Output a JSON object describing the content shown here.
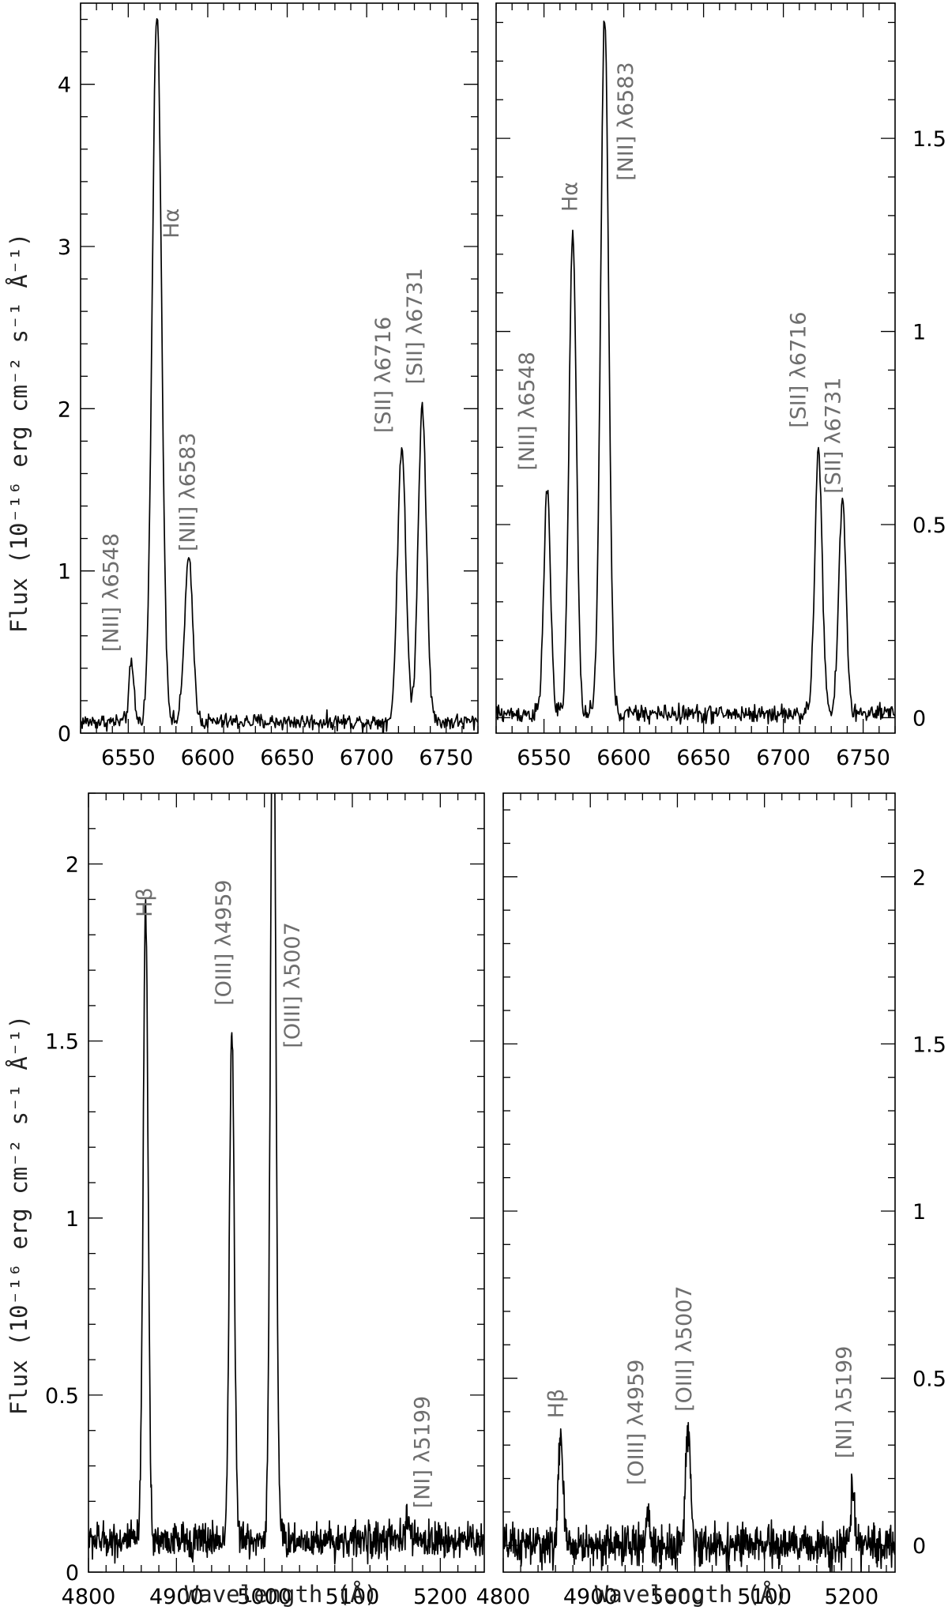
{
  "figure": {
    "xlabel": "Wavelength (Å)",
    "ylabel": "Flux (10⁻¹⁶ erg cm⁻² s⁻¹ Å⁻¹)"
  },
  "chart_data": [
    {
      "type": "line",
      "panel": "top-left",
      "xlabel": "",
      "ylabel": "Flux (10⁻¹⁶ erg cm⁻² s⁻¹ Å⁻¹)",
      "xlim": [
        6520,
        6770
      ],
      "ylim": [
        0,
        4.5
      ],
      "xticks": [
        6550,
        6600,
        6650,
        6700,
        6750
      ],
      "yticks": [
        0,
        1,
        2,
        3,
        4
      ],
      "ytick_side": "left",
      "continuum": 0.07,
      "noise": 0.025,
      "lines": [
        {
          "center": 6552,
          "peak": 0.35,
          "sigma": 1.6
        },
        {
          "center": 6568,
          "peak": 4.4,
          "sigma": 2.9
        },
        {
          "center": 6588,
          "peak": 1.0,
          "sigma": 2.6
        },
        {
          "center": 6722,
          "peak": 1.7,
          "sigma": 2.6
        },
        {
          "center": 6735,
          "peak": 1.95,
          "sigma": 2.6
        }
      ],
      "annotations": [
        {
          "text": "[NII] λ6548",
          "x": 6540,
          "y": 0.5
        },
        {
          "text": "Hα",
          "x": 6578,
          "y": 3.05
        },
        {
          "text": "[NII] λ6583",
          "x": 6588,
          "y": 1.12
        },
        {
          "text": "[SII] λ6716",
          "x": 6711,
          "y": 1.85
        },
        {
          "text": "[SII] λ6731",
          "x": 6731,
          "y": 2.15
        }
      ]
    },
    {
      "type": "line",
      "panel": "top-right",
      "xlabel": "",
      "ylabel": "",
      "xlim": [
        6520,
        6770
      ],
      "ylim": [
        -0.04,
        1.85
      ],
      "xticks": [
        6550,
        6600,
        6650,
        6700,
        6750
      ],
      "yticks": [
        0,
        0.5,
        1,
        1.5
      ],
      "ytick_side": "right",
      "continuum": 0.01,
      "noise": 0.012,
      "lines": [
        {
          "center": 6552,
          "peak": 0.58,
          "sigma": 2.1
        },
        {
          "center": 6568,
          "peak": 1.24,
          "sigma": 2.3
        },
        {
          "center": 6588,
          "peak": 1.81,
          "sigma": 2.5
        },
        {
          "center": 6722,
          "peak": 0.68,
          "sigma": 2.3
        },
        {
          "center": 6737,
          "peak": 0.55,
          "sigma": 2.3
        }
      ],
      "annotations": [
        {
          "text": "[NII] λ6548",
          "x": 6540,
          "y": 0.64
        },
        {
          "text": "Hα",
          "x": 6567,
          "y": 1.31
        },
        {
          "text": "[NII] λ6583",
          "x": 6602,
          "y": 1.39
        },
        {
          "text": "[SII] λ6716",
          "x": 6710,
          "y": 0.75
        },
        {
          "text": "[SII] λ6731",
          "x": 6732,
          "y": 0.58
        }
      ]
    },
    {
      "type": "line",
      "panel": "bottom-left",
      "xlabel": "Wavelength (Å)",
      "ylabel": "Flux (10⁻¹⁶ erg cm⁻² s⁻¹ Å⁻¹)",
      "xlim": [
        4800,
        5250
      ],
      "ylim": [
        0,
        2.2
      ],
      "xticks": [
        4800,
        4900,
        5000,
        5100,
        5200
      ],
      "yticks": [
        0,
        0.5,
        1,
        1.5,
        2
      ],
      "ytick_side": "left",
      "continuum": 0.09,
      "noise": 0.025,
      "lines": [
        {
          "center": 4865,
          "peak": 1.77,
          "sigma": 2.8
        },
        {
          "center": 4963,
          "peak": 1.44,
          "sigma": 2.8
        },
        {
          "center": 5010,
          "peak": 2.6,
          "sigma": 3.0
        },
        {
          "center": 5163,
          "peak": 0.06,
          "sigma": 2.5
        }
      ],
      "annotations": [
        {
          "text": "Hβ",
          "x": 4865,
          "y": 1.85
        },
        {
          "text": "[OIII] λ4959",
          "x": 4955,
          "y": 1.6
        },
        {
          "text": "[OIII] λ5007",
          "x": 5033,
          "y": 1.48
        },
        {
          "text": "[NI] λ5199",
          "x": 5181,
          "y": 0.18
        }
      ]
    },
    {
      "type": "line",
      "panel": "bottom-right",
      "xlabel": "Wavelength (Å)",
      "ylabel": "",
      "xlim": [
        4800,
        5250
      ],
      "ylim": [
        -0.08,
        2.25
      ],
      "xticks": [
        4800,
        4900,
        5000,
        5100,
        5200
      ],
      "yticks": [
        0,
        0.5,
        1,
        1.5,
        2
      ],
      "ytick_side": "right",
      "continuum": 0.0,
      "noise": 0.03,
      "lines": [
        {
          "center": 4866,
          "peak": 0.33,
          "sigma": 2.6
        },
        {
          "center": 4966,
          "peak": 0.1,
          "sigma": 2.0
        },
        {
          "center": 5012,
          "peak": 0.34,
          "sigma": 2.8
        },
        {
          "center": 5201,
          "peak": 0.16,
          "sigma": 2.0
        }
      ],
      "annotations": [
        {
          "text": "Hβ",
          "x": 4862,
          "y": 0.38
        },
        {
          "text": "[OIII] λ4959",
          "x": 4954,
          "y": 0.18
        },
        {
          "text": "[OIII] λ5007",
          "x": 5009,
          "y": 0.4
        },
        {
          "text": "[NI] λ5199",
          "x": 5193,
          "y": 0.26
        }
      ]
    }
  ]
}
